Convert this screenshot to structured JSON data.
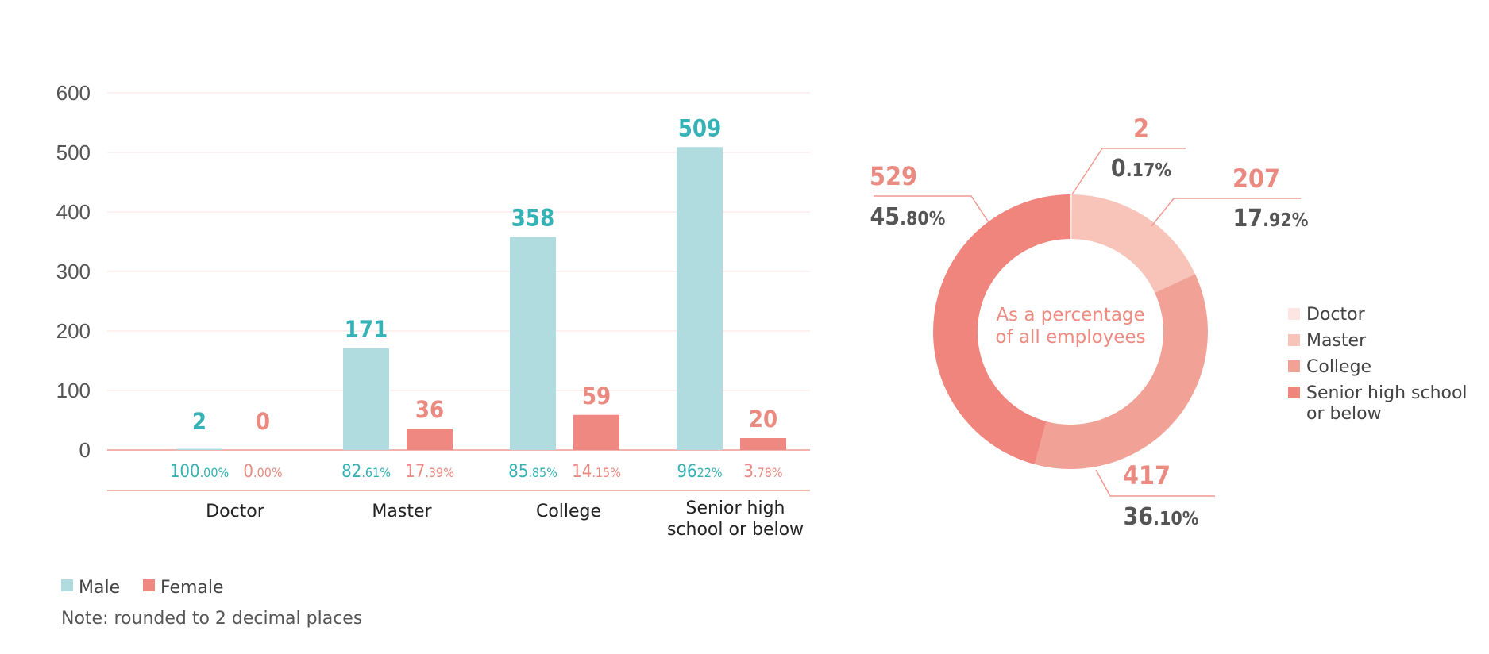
{
  "colors": {
    "male": "#b0dcdf",
    "female": "#ef8880",
    "male_text": "#34b2b6",
    "female_text": "#ea8a80",
    "grid": "#fbe0de",
    "axis": "#ef9a93",
    "doctor": "#fde5e3",
    "master": "#f8c4ba",
    "college": "#f2a196",
    "senior": "#f0857d"
  },
  "chart_data": [
    {
      "type": "bar",
      "title": "",
      "xlabel": "",
      "ylabel": "",
      "ylim": [
        0,
        600
      ],
      "yticks": [
        "0",
        "100",
        "200",
        "300",
        "400",
        "500",
        "600"
      ],
      "categories": [
        "Doctor",
        "Master",
        "College",
        "Senior high school or below"
      ],
      "category_lines": [
        [
          "Doctor"
        ],
        [
          "Master"
        ],
        [
          "College"
        ],
        [
          "Senior high",
          "school or below"
        ]
      ],
      "series": [
        {
          "name": "Male",
          "values": [
            2,
            171,
            358,
            509
          ],
          "labels": [
            "2",
            "171",
            "358",
            "509"
          ],
          "pct_main": [
            "100",
            "82",
            "85",
            "96"
          ],
          "pct_small": [
            ".00%",
            ".61%",
            ".85%",
            "22%"
          ]
        },
        {
          "name": "Female",
          "values": [
            0,
            36,
            59,
            20
          ],
          "labels": [
            "0",
            "36",
            "59",
            "20"
          ],
          "pct_main": [
            "0",
            "17",
            "14",
            "3"
          ],
          "pct_small": [
            ".00%",
            ".39%",
            ".15%",
            ".78%"
          ]
        }
      ],
      "legend": [
        "Male",
        "Female"
      ],
      "note": "Note: rounded to 2 decimal places"
    },
    {
      "type": "pie",
      "center_label": [
        "As a percentage",
        "of all employees"
      ],
      "slices": [
        {
          "name": "Doctor",
          "value": 2,
          "label": "2",
          "pct_main": "0",
          "pct_small": ".17%"
        },
        {
          "name": "Master",
          "value": 207,
          "label": "207",
          "pct_main": "17",
          "pct_small": ".92%"
        },
        {
          "name": "College",
          "value": 417,
          "label": "417",
          "pct_main": "36",
          "pct_small": ".10%"
        },
        {
          "name": "Senior high school or below",
          "value": 529,
          "label": "529",
          "pct_main": "45",
          "pct_small": ".80%"
        }
      ],
      "legend_lines": [
        [
          "Doctor"
        ],
        [
          "Master"
        ],
        [
          "College"
        ],
        [
          "Senior high school",
          "or below"
        ]
      ]
    }
  ]
}
